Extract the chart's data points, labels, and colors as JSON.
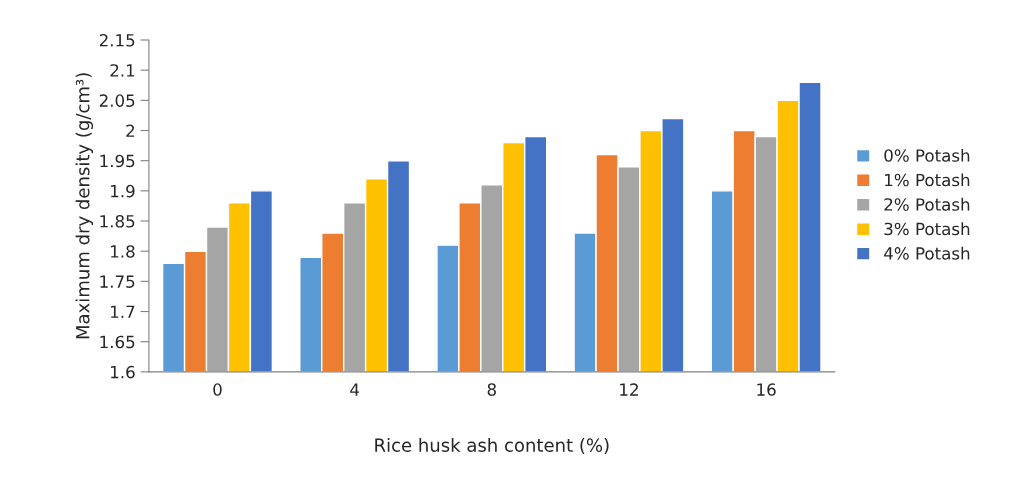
{
  "chart_data": {
    "type": "bar",
    "xlabel": "Rice husk ash content (%)",
    "ylabel": "Maximum dry density (g/cm³)",
    "categories": [
      "0",
      "4",
      "8",
      "12",
      "16"
    ],
    "series": [
      {
        "name": "0% Potash",
        "color": "#5b9bd5",
        "values": [
          1.78,
          1.79,
          1.81,
          1.83,
          1.9
        ]
      },
      {
        "name": "1% Potash",
        "color": "#ed7d31",
        "values": [
          1.8,
          1.83,
          1.88,
          1.96,
          2.0
        ]
      },
      {
        "name": "2% Potash",
        "color": "#a5a5a5",
        "values": [
          1.84,
          1.88,
          1.91,
          1.94,
          1.99
        ]
      },
      {
        "name": "3% Potash",
        "color": "#ffc000",
        "values": [
          1.88,
          1.92,
          1.98,
          2.0,
          2.05
        ]
      },
      {
        "name": "4% Potash",
        "color": "#4472c4",
        "values": [
          1.9,
          1.95,
          1.99,
          2.02,
          2.08
        ]
      }
    ],
    "ylim": [
      1.6,
      2.15
    ],
    "yticks": [
      1.6,
      1.65,
      1.7,
      1.75,
      1.8,
      1.85,
      1.9,
      1.95,
      2,
      2.05,
      2.1,
      2.15
    ],
    "grid": false,
    "legend": "right"
  }
}
